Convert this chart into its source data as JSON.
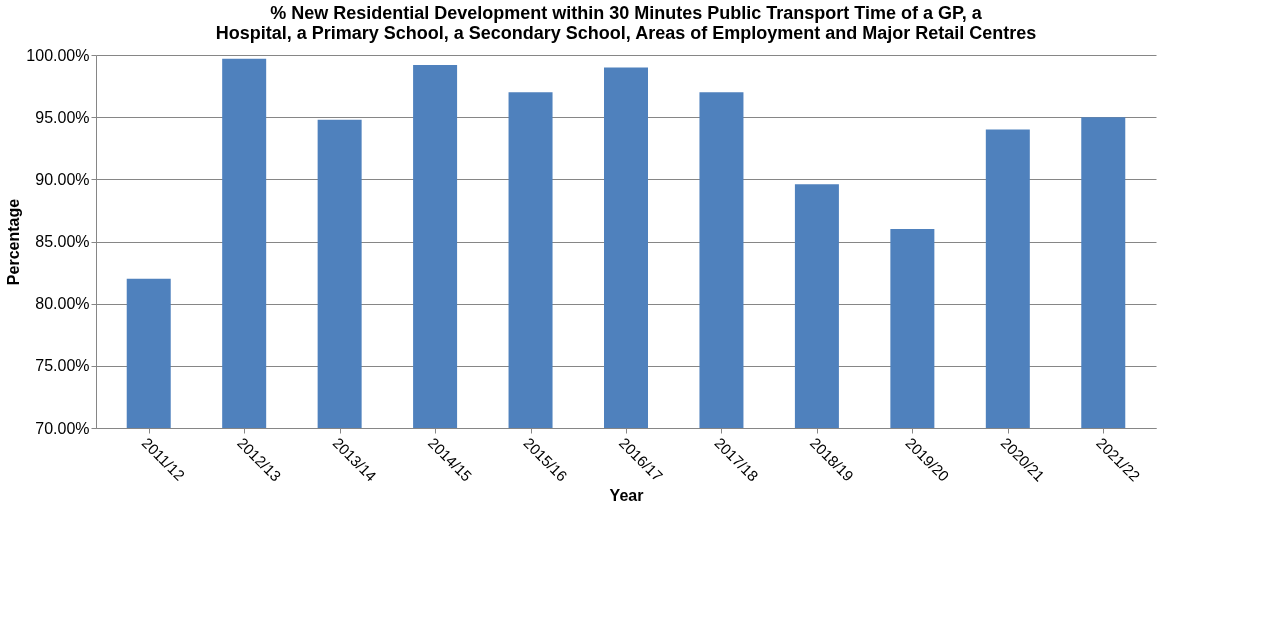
{
  "chart_data": {
    "type": "bar",
    "title": "% New Residential Development within 30 Minutes Public Transport Time of a GP, a Hospital, a Primary School, a Secondary School, Areas of Employment and Major Retail Centres",
    "xlabel": "Year",
    "ylabel": "Percentage",
    "categories": [
      "2011/12",
      "2012/13",
      "2013/14",
      "2014/15",
      "2015/16",
      "2016/17",
      "2017/18",
      "2018/19",
      "2019/20",
      "2020/21",
      "2021/22"
    ],
    "values": [
      82.0,
      99.7,
      94.8,
      99.2,
      97.0,
      99.0,
      97.0,
      89.6,
      86.0,
      94.0,
      95.0
    ],
    "color": "#4f81bd",
    "ylim": [
      70,
      100
    ],
    "yticks": [
      {
        "value": 70,
        "label": "70.00%"
      },
      {
        "value": 75,
        "label": "75.00%"
      },
      {
        "value": 80,
        "label": "80.00%"
      },
      {
        "value": 85,
        "label": "85.00%"
      },
      {
        "value": 90,
        "label": "90.00%"
      },
      {
        "value": 95,
        "label": "95.00%"
      },
      {
        "value": 100,
        "label": "100.00%"
      }
    ],
    "grid": "y"
  }
}
